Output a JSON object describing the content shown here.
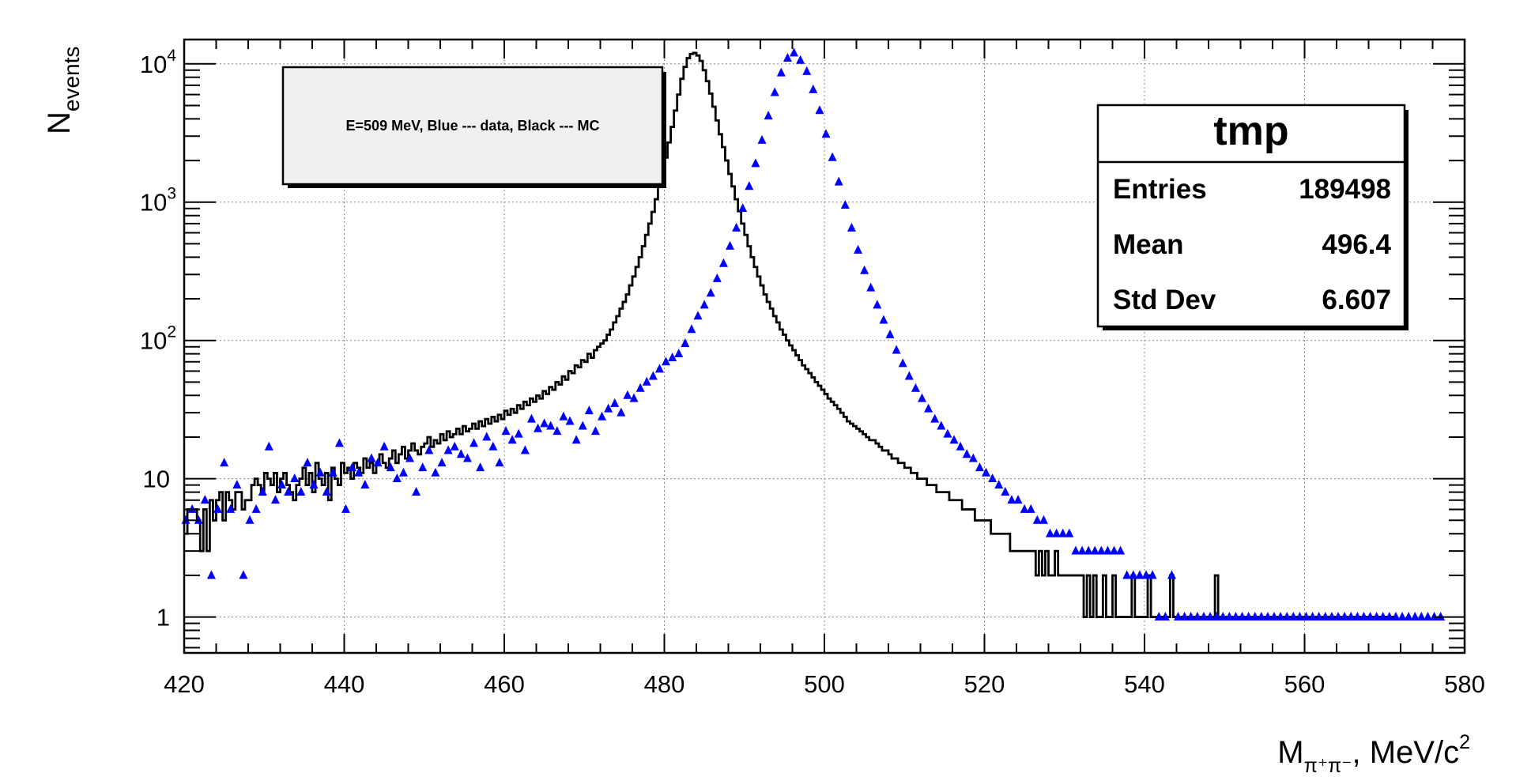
{
  "chart_data": {
    "type": "histogram",
    "xlabel_main": "M",
    "xlabel_sub": "π⁺π⁻",
    "xlabel_unit": ", MeV/c",
    "xlabel_sup": "2",
    "ylabel_main": "N",
    "ylabel_sub": "events",
    "xlim": [
      420,
      580
    ],
    "ylim": [
      0.55,
      15000
    ],
    "yscale": "log",
    "grid": true,
    "x_ticks": [
      420,
      440,
      460,
      480,
      500,
      520,
      540,
      560,
      580
    ],
    "y_ticks": [
      {
        "value": 1,
        "base": "1",
        "exp": ""
      },
      {
        "value": 10,
        "base": "10",
        "exp": ""
      },
      {
        "value": 100,
        "base": "10",
        "exp": "2"
      },
      {
        "value": 1000,
        "base": "10",
        "exp": "3"
      },
      {
        "value": 10000,
        "base": "10",
        "exp": "4"
      }
    ],
    "annotation": "E=509 MeV, Blue --- data, Black --- MC",
    "stats": {
      "title": "tmp",
      "rows": [
        {
          "label": "Entries",
          "value": "189498"
        },
        {
          "label": "Mean",
          "value": "496.4"
        },
        {
          "label": "Std Dev",
          "value": "6.607"
        }
      ]
    },
    "colors": {
      "data": "#0000ff",
      "mc": "#000000",
      "annotation_bg": "#f0f0f0"
    },
    "bin_width": 0.4,
    "series": [
      {
        "style": "step",
        "x_start": 420,
        "x_end": 580,
        "values": [
          4,
          6,
          6,
          6,
          5,
          3,
          6,
          3,
          7,
          5,
          7,
          8,
          5,
          8,
          7,
          6,
          8,
          8,
          6,
          7,
          7,
          9,
          10,
          9,
          8,
          11,
          10,
          9,
          11,
          8,
          10,
          11,
          9,
          8,
          7,
          9,
          10,
          12,
          9,
          11,
          8,
          13,
          10,
          9,
          11,
          7,
          12,
          10,
          9,
          13,
          11,
          12,
          10,
          13,
          12,
          11,
          14,
          12,
          13,
          11,
          13,
          15,
          13,
          12,
          14,
          16,
          13,
          15,
          17,
          14,
          16,
          18,
          16,
          15,
          17,
          18,
          20,
          17,
          19,
          18,
          21,
          19,
          22,
          20,
          21,
          23,
          21,
          24,
          22,
          23,
          25,
          23,
          26,
          24,
          27,
          25,
          28,
          26,
          29,
          27,
          31,
          29,
          32,
          30,
          34,
          32,
          36,
          34,
          38,
          36,
          40,
          38,
          43,
          41,
          46,
          44,
          50,
          48,
          55,
          52,
          60,
          58,
          66,
          64,
          72,
          70,
          80,
          75,
          85,
          90,
          95,
          100,
          110,
          120,
          135,
          150,
          170,
          190,
          215,
          250,
          290,
          340,
          400,
          480,
          580,
          700,
          850,
          1050,
          1300,
          1650,
          2100,
          2700,
          3500,
          4600,
          6000,
          7800,
          9500,
          11000,
          11800,
          12000,
          11500,
          10500,
          9000,
          7500,
          6100,
          4900,
          3900,
          3100,
          2500,
          2000,
          1600,
          1300,
          1050,
          860,
          700,
          580,
          480,
          400,
          340,
          290,
          250,
          215,
          190,
          170,
          150,
          135,
          120,
          110,
          100,
          92,
          85,
          78,
          72,
          66,
          62,
          58,
          54,
          50,
          47,
          44,
          41,
          38,
          36,
          34,
          32,
          30,
          28,
          26,
          25,
          24,
          23,
          22,
          21,
          20,
          19,
          19,
          18,
          17,
          16,
          16,
          15,
          14,
          14,
          13,
          13,
          12,
          12,
          11,
          11,
          10,
          10,
          10,
          9,
          9,
          9,
          8,
          8,
          8,
          8,
          7,
          7,
          7,
          7,
          6,
          6,
          6,
          6,
          5,
          5,
          5,
          5,
          5,
          4,
          4,
          4,
          4,
          4,
          4,
          3,
          3,
          3,
          3,
          3,
          3,
          3,
          3,
          2,
          3,
          2,
          3,
          2,
          2,
          3,
          2,
          2,
          2,
          2,
          2,
          2,
          2,
          2,
          1,
          2,
          1,
          2,
          1,
          1,
          2,
          1,
          1,
          2,
          1,
          1,
          1,
          1,
          1,
          2,
          1,
          1,
          1,
          1,
          2,
          1,
          1,
          1,
          1,
          1,
          1,
          2,
          1,
          1,
          1,
          1,
          1,
          1,
          1,
          1,
          1,
          1,
          1,
          1,
          1,
          2,
          1,
          1,
          1,
          1,
          1,
          1,
          1,
          1,
          1,
          1,
          1,
          1,
          1,
          1,
          1,
          1,
          1,
          1,
          1,
          1,
          1,
          1,
          1,
          1,
          1,
          1,
          1,
          1,
          1,
          1,
          1,
          1,
          1,
          1,
          1,
          1,
          1,
          1,
          1,
          1,
          1,
          1,
          1,
          1,
          1,
          1,
          1,
          1,
          1,
          1,
          1,
          1,
          1,
          1,
          1,
          1
        ]
      },
      {
        "style": "marker-triangle",
        "x_start": 420.2,
        "x_step": 0.8,
        "values": [
          5,
          6,
          5,
          7,
          2,
          6,
          13,
          6,
          9,
          2,
          5,
          6,
          8,
          17,
          7,
          9,
          8,
          10,
          8,
          13,
          9,
          11,
          8,
          11,
          18,
          6,
          12,
          11,
          9,
          14,
          13,
          17,
          12,
          10,
          11,
          14,
          8,
          12,
          16,
          11,
          13,
          16,
          17,
          15,
          14,
          18,
          12,
          20,
          17,
          13,
          22,
          19,
          21,
          16,
          27,
          23,
          25,
          24,
          22,
          28,
          26,
          19,
          24,
          31,
          22,
          28,
          32,
          35,
          30,
          40,
          38,
          45,
          50,
          55,
          62,
          70,
          75,
          80,
          95,
          120,
          150,
          180,
          220,
          280,
          360,
          480,
          650,
          900,
          1300,
          1900,
          2800,
          4200,
          6200,
          8600,
          11000,
          12000,
          10600,
          8800,
          6500,
          4600,
          3100,
          2100,
          1400,
          950,
          650,
          450,
          320,
          240,
          180,
          140,
          110,
          85,
          68,
          55,
          45,
          38,
          32,
          27,
          24,
          21,
          19,
          17,
          15,
          14,
          12,
          11,
          10,
          9,
          8,
          7,
          7,
          6,
          6,
          5,
          5,
          4,
          4,
          4,
          4,
          3,
          3,
          3,
          3,
          3,
          3,
          3,
          3,
          2,
          2,
          2,
          2,
          2,
          1,
          1,
          2,
          1,
          1,
          1,
          1,
          1,
          1,
          1,
          1,
          1,
          1,
          1,
          1,
          1,
          1,
          1,
          1,
          1,
          1,
          1,
          1,
          1,
          1,
          1,
          1,
          1,
          1,
          1,
          1,
          1,
          1,
          1,
          1,
          1,
          1,
          1,
          1,
          1,
          1,
          1,
          1,
          1,
          1
        ]
      }
    ]
  }
}
